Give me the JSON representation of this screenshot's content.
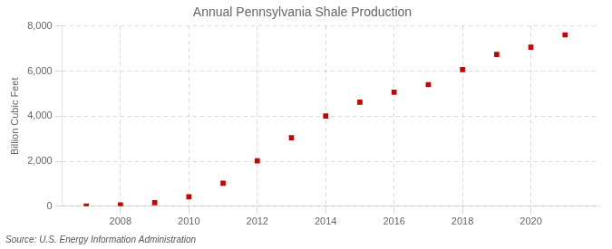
{
  "chart_data": {
    "type": "scatter",
    "title": "Annual Pennsylvania Shale Production",
    "ylabel": "Billion Cubic Feet",
    "source": "Source: U.S. Energy Information Administration",
    "x": [
      2007,
      2008,
      2009,
      2010,
      2011,
      2012,
      2013,
      2014,
      2015,
      2016,
      2017,
      2018,
      2019,
      2020,
      2021
    ],
    "values": [
      10,
      55,
      160,
      420,
      1020,
      2020,
      3040,
      4010,
      4620,
      5060,
      5400,
      6070,
      6740,
      7060,
      7610
    ],
    "color": "#cc0000",
    "marker": "square",
    "xlim": [
      2006.3,
      2022.0
    ],
    "xticks": [
      2008,
      2010,
      2012,
      2014,
      2016,
      2018,
      2020
    ],
    "ylim": [
      0,
      8000
    ],
    "yticks": [
      0,
      {
        "value": 2000,
        "label": "2,000"
      },
      {
        "value": 4000,
        "label": "4,000"
      },
      {
        "value": 6000,
        "label": "6,000"
      },
      {
        "value": 8000,
        "label": "8,000"
      }
    ],
    "grid": true
  }
}
